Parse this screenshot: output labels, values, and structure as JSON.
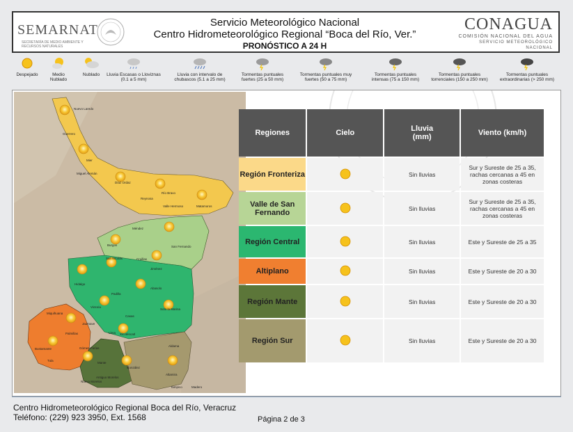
{
  "header": {
    "semarnat": "SEMARNAT",
    "semarnat_sub": "SECRETARÍA DE MEDIO AMBIENTE Y RECURSOS NATURALES",
    "title1": "Servicio Meteorológico Nacional",
    "title2": "Centro Hidrometeorológico Regional “Boca del Río, Ver.”",
    "title3": "PRONÓSTICO A 24 H",
    "conagua": "CONAGUA",
    "conagua_sub1": "COMISIÓN NACIONAL DEL AGUA",
    "conagua_sub2": "SERVICIO METEOROLÓGICO NACIONAL"
  },
  "legend": [
    {
      "icon": "sun-icon",
      "label": "Despejado"
    },
    {
      "icon": "sun-cloud-icon",
      "label": "Medio Nublado"
    },
    {
      "icon": "cloud-sun-icon",
      "label": "Nublado"
    },
    {
      "icon": "light-rain-icon",
      "label": "Lluvia Escasas o Lloviznas (0.1 a 5 mm)"
    },
    {
      "icon": "shower-icon",
      "label": "Lluvia con intervalo de chubascos (5.1 a 25 mm)"
    },
    {
      "icon": "storm-icon",
      "label": "Tormentas puntuales fuertes (25 a 50 mm)"
    },
    {
      "icon": "storm-icon",
      "label": "Tormentas puntuales muy fuertes (50 a 75 mm)"
    },
    {
      "icon": "storm-icon",
      "label": "Tormentas puntuales intensas (75 a 150 mm)"
    },
    {
      "icon": "storm-icon",
      "label": "Tormentas puntuales torrenciales (150 a 250 mm)"
    },
    {
      "icon": "storm-icon",
      "label": "Tormentas puntuales extraordinarias (> 250 mm)"
    }
  ],
  "table": {
    "headers": [
      "Regiones",
      "Cielo",
      "Lluvia\n(mm)",
      "Viento (km/h)"
    ],
    "rows": [
      {
        "region": "Región Fronteriza",
        "color": "#fbd989",
        "sky": "sun-icon",
        "rain": "Sin lluvias",
        "wind": "Sur y Sureste de 25 a 35, rachas cercanas a 45 en zonas costeras"
      },
      {
        "region": "Valle de San Fernando",
        "color": "#b7d596",
        "sky": "sun-icon",
        "rain": "Sin lluvias",
        "wind": "Sur y Sureste de 25 a 35, rachas cercanas a 45 en zonas costeras"
      },
      {
        "region": "Región Central",
        "color": "#2bb770",
        "sky": "sun-icon",
        "rain": "Sin lluvias",
        "wind": "Este y Sureste de 25 a 35"
      },
      {
        "region": "Altiplano",
        "color": "#f07f30",
        "sky": "sun-icon",
        "rain": "Sin lluvias",
        "wind": "Este y Sureste de 20 a 30"
      },
      {
        "region": "Región Mante",
        "color": "#5c7639",
        "sky": "sun-icon",
        "rain": "Sin lluvias",
        "wind": "Este y Sureste de 20 a 30"
      },
      {
        "region": "Región Sur",
        "color": "#a39a6e",
        "sky": "sun-icon",
        "rain": "Sin lluvias",
        "wind": "Este y Sureste de 20 a 30"
      }
    ]
  },
  "map": {
    "labels": [
      "Nuevo Laredo",
      "Guerrero",
      "Mier",
      "Miguel Alemán",
      "Díaz Ordaz",
      "Reynosa",
      "Río Bravo",
      "Valle Hermoso",
      "Matamoros",
      "Méndez",
      "Burgos",
      "San Fernando",
      "Cruillas",
      "San Nicolás",
      "Jiménez",
      "Abasolo",
      "Padilla",
      "Hidalgo",
      "Victoria",
      "Casas",
      "Soto la Marina",
      "Llera",
      "Miquihuana",
      "Bustamante",
      "Palmillas",
      "Jaumave",
      "Tula",
      "Gómez Farías",
      "Mante",
      "González",
      "Aldama",
      "Altamira",
      "Tampico",
      "Madero",
      "Xicoténcatl",
      "Antiguo Morelos",
      "Nuevo Morelos"
    ]
  },
  "footer": {
    "line1": "Centro Hidrometeorológico Regional Boca del Río, Veracruz",
    "line2": "Teléfono: (229) 923 3950, Ext. 1568",
    "page": "Página 2 de 3"
  }
}
